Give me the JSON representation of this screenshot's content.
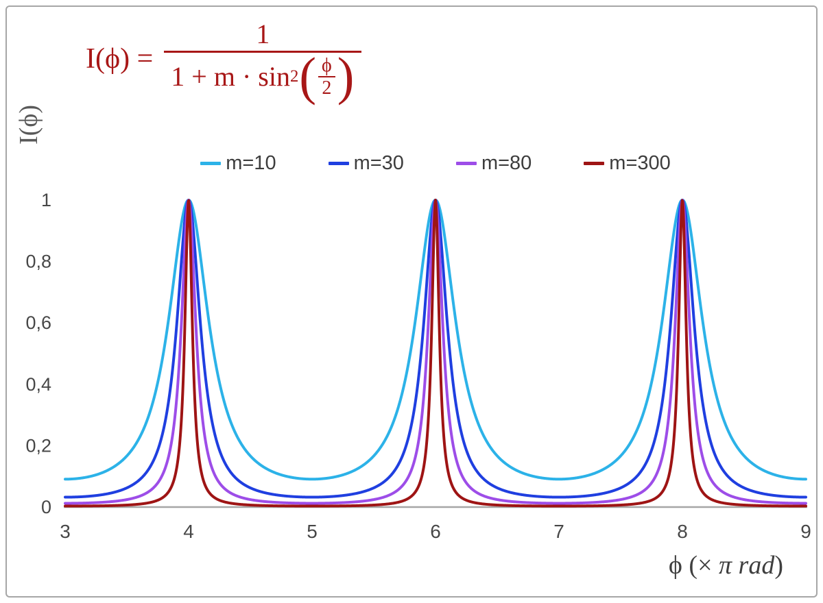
{
  "formula": {
    "color": "#a81717",
    "lhs": "I(ϕ) =",
    "numerator": "1",
    "denominator_prefix": "1 + m · sin",
    "denominator_sup": "2",
    "paren_open": "(",
    "paren_close": ")",
    "inner_numerator": "ϕ",
    "inner_denominator": "2"
  },
  "axes": {
    "y_label": "I(ϕ)",
    "x_label_plain_1": "ϕ  (× ",
    "x_label_italic": "π rad",
    "x_label_plain_2": ")",
    "axis_line_color": "#a6a6a6",
    "tick_color": "#474747"
  },
  "chart_data": {
    "type": "line",
    "title": "I(ϕ) = 1 / (1 + m·sin²(ϕ/2))",
    "function": "I(x) = 1 / (1 + m·sin²(x·π/2)), x in units of π rad",
    "xlabel": "ϕ (× π rad)",
    "ylabel": "I(ϕ)",
    "xlim": [
      3,
      9
    ],
    "ylim": [
      0,
      1
    ],
    "grid": false,
    "legend_position": "top-center",
    "peaks_at_x": [
      4,
      6,
      8
    ],
    "peak_value": 1,
    "x_ticks": [
      {
        "label": "3",
        "value": 3
      },
      {
        "label": "4",
        "value": 4
      },
      {
        "label": "5",
        "value": 5
      },
      {
        "label": "6",
        "value": 6
      },
      {
        "label": "7",
        "value": 7
      },
      {
        "label": "8",
        "value": 8
      },
      {
        "label": "9",
        "value": 9
      }
    ],
    "y_ticks": [
      {
        "label": "0",
        "value": 0
      },
      {
        "label": "0,2",
        "value": 0.2
      },
      {
        "label": "0,4",
        "value": 0.4
      },
      {
        "label": "0,6",
        "value": 0.6
      },
      {
        "label": "0,8",
        "value": 0.8
      },
      {
        "label": "1",
        "value": 1
      }
    ],
    "series": [
      {
        "name": "m=10",
        "m": 10,
        "color": "#2cb2e8"
      },
      {
        "name": "m=30",
        "m": 30,
        "color": "#1f3fe0"
      },
      {
        "name": "m=80",
        "m": 80,
        "color": "#9d4de8"
      },
      {
        "name": "m=300",
        "m": 300,
        "color": "#9e1414"
      }
    ]
  }
}
